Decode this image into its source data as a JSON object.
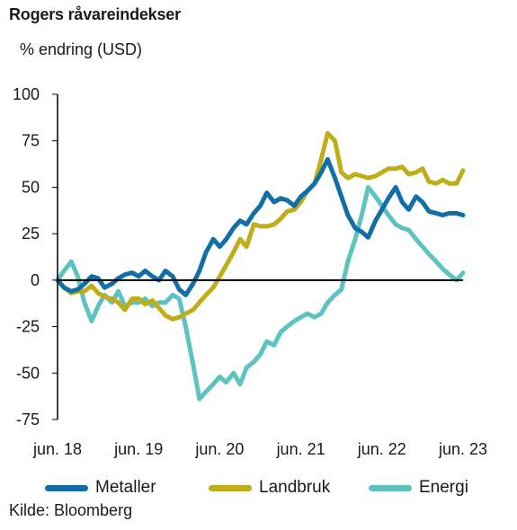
{
  "chart_data": {
    "type": "line",
    "title": "Rogers råvareindekser",
    "ylabel": "% endring (USD)",
    "xlabel": "",
    "source": "Kilde: Bloomberg",
    "ylim": [
      -75,
      100
    ],
    "yticks": [
      100,
      75,
      50,
      25,
      0,
      -25,
      -50,
      -75
    ],
    "xlim": [
      2018.5,
      2023.5
    ],
    "xticks": [
      {
        "value": 2018.5,
        "label": "jun. 18"
      },
      {
        "value": 2019.5,
        "label": "jun. 19"
      },
      {
        "value": 2020.5,
        "label": "jun. 20"
      },
      {
        "value": 2021.5,
        "label": "jun. 21"
      },
      {
        "value": 2022.5,
        "label": "jun. 22"
      },
      {
        "value": 2023.5,
        "label": "jun. 23"
      }
    ],
    "grid": false,
    "legend_position": "bottom",
    "series": [
      {
        "name": "Metaller",
        "color": "#0f6fa6",
        "x": [
          2018.5,
          2018.58,
          2018.67,
          2018.75,
          2018.83,
          2018.92,
          2019.0,
          2019.08,
          2019.17,
          2019.25,
          2019.33,
          2019.42,
          2019.5,
          2019.58,
          2019.67,
          2019.75,
          2019.83,
          2019.92,
          2020.0,
          2020.08,
          2020.17,
          2020.25,
          2020.33,
          2020.42,
          2020.5,
          2020.58,
          2020.67,
          2020.75,
          2020.83,
          2020.92,
          2021.0,
          2021.08,
          2021.17,
          2021.25,
          2021.33,
          2021.42,
          2021.5,
          2021.58,
          2021.67,
          2021.75,
          2021.83,
          2021.92,
          2022.0,
          2022.08,
          2022.17,
          2022.25,
          2022.33,
          2022.42,
          2022.5,
          2022.58,
          2022.67,
          2022.75,
          2022.83,
          2022.92,
          2023.0,
          2023.08,
          2023.17,
          2023.25,
          2023.33,
          2023.42,
          2023.5
        ],
        "values": [
          0,
          -4,
          -6,
          -5,
          -2,
          2,
          1,
          -4,
          -2,
          1,
          3,
          4,
          2,
          5,
          2,
          0,
          5,
          2,
          -5,
          -8,
          -2,
          5,
          15,
          22,
          18,
          22,
          28,
          32,
          30,
          36,
          40,
          47,
          42,
          44,
          43,
          40,
          45,
          48,
          52,
          58,
          65,
          55,
          45,
          35,
          28,
          26,
          23,
          32,
          38,
          44,
          50,
          42,
          38,
          45,
          42,
          37,
          36,
          35,
          36,
          36,
          35
        ]
      },
      {
        "name": "Landbruk",
        "color": "#bfae17",
        "x": [
          2018.5,
          2018.58,
          2018.67,
          2018.75,
          2018.83,
          2018.92,
          2019.0,
          2019.08,
          2019.17,
          2019.25,
          2019.33,
          2019.42,
          2019.5,
          2019.58,
          2019.67,
          2019.75,
          2019.83,
          2019.92,
          2020.0,
          2020.08,
          2020.17,
          2020.25,
          2020.33,
          2020.42,
          2020.5,
          2020.58,
          2020.67,
          2020.75,
          2020.83,
          2020.92,
          2021.0,
          2021.08,
          2021.17,
          2021.25,
          2021.33,
          2021.42,
          2021.5,
          2021.58,
          2021.67,
          2021.75,
          2021.83,
          2021.92,
          2022.0,
          2022.08,
          2022.17,
          2022.25,
          2022.33,
          2022.42,
          2022.5,
          2022.58,
          2022.67,
          2022.75,
          2022.83,
          2022.92,
          2023.0,
          2023.08,
          2023.17,
          2023.25,
          2023.33,
          2023.42,
          2023.5
        ],
        "values": [
          0,
          -4,
          -7,
          -6,
          -6,
          -3,
          -7,
          -9,
          -10,
          -12,
          -16,
          -10,
          -10,
          -13,
          -11,
          -15,
          -19,
          -21,
          -20,
          -18,
          -16,
          -12,
          -8,
          -4,
          2,
          8,
          15,
          22,
          18,
          30,
          29,
          29,
          30,
          33,
          37,
          38,
          42,
          48,
          52,
          65,
          79,
          75,
          58,
          55,
          57,
          56,
          55,
          56,
          58,
          60,
          60,
          61,
          57,
          58,
          60,
          53,
          52,
          54,
          52,
          52,
          59
        ]
      },
      {
        "name": "Energi",
        "color": "#5bc3c0",
        "x": [
          2018.5,
          2018.58,
          2018.67,
          2018.75,
          2018.83,
          2018.92,
          2019.0,
          2019.08,
          2019.17,
          2019.25,
          2019.33,
          2019.42,
          2019.5,
          2019.58,
          2019.67,
          2019.75,
          2019.83,
          2019.92,
          2020.0,
          2020.08,
          2020.17,
          2020.25,
          2020.33,
          2020.42,
          2020.5,
          2020.58,
          2020.67,
          2020.75,
          2020.83,
          2020.92,
          2021.0,
          2021.08,
          2021.17,
          2021.25,
          2021.33,
          2021.42,
          2021.5,
          2021.58,
          2021.67,
          2021.75,
          2021.83,
          2021.92,
          2022.0,
          2022.08,
          2022.17,
          2022.25,
          2022.33,
          2022.42,
          2022.5,
          2022.58,
          2022.67,
          2022.75,
          2022.83,
          2022.92,
          2023.0,
          2023.08,
          2023.17,
          2023.25,
          2023.33,
          2023.42,
          2023.5
        ],
        "values": [
          0,
          5,
          10,
          2,
          -12,
          -22,
          -14,
          -8,
          -12,
          -6,
          -14,
          -12,
          -12,
          -10,
          -14,
          -12,
          -12,
          -8,
          -10,
          -25,
          -45,
          -64,
          -60,
          -56,
          -52,
          -55,
          -50,
          -56,
          -47,
          -44,
          -40,
          -33,
          -35,
          -28,
          -25,
          -22,
          -20,
          -18,
          -20,
          -18,
          -12,
          -8,
          -5,
          10,
          22,
          35,
          50,
          45,
          40,
          35,
          30,
          28,
          27,
          22,
          18,
          14,
          10,
          6,
          3,
          0,
          4
        ]
      }
    ]
  }
}
